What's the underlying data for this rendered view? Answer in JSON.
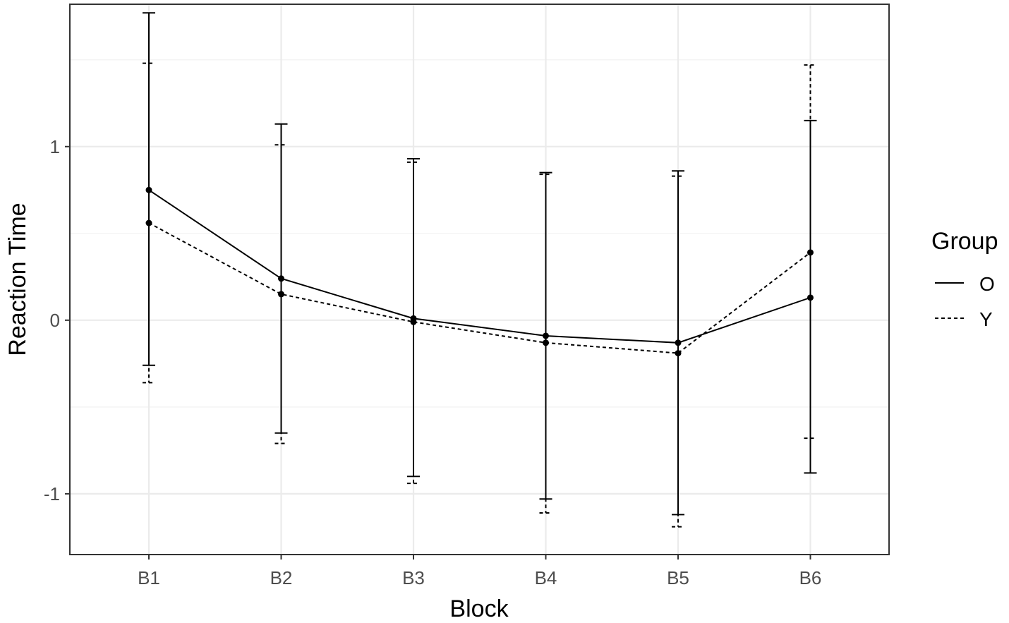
{
  "chart_data": {
    "type": "line",
    "xlabel": "Block",
    "ylabel": "Reaction Time",
    "categories": [
      "B1",
      "B2",
      "B3",
      "B4",
      "B5",
      "B6"
    ],
    "ylim": [
      -1.35,
      1.82
    ],
    "yticks": [
      -1,
      0,
      1
    ],
    "ytick_labels": [
      "-1",
      "0",
      "1"
    ],
    "grid": true,
    "legend": {
      "title": "Group",
      "position": "right"
    },
    "series": [
      {
        "name": "O",
        "line_style": "solid",
        "values": [
          0.75,
          0.24,
          0.01,
          -0.09,
          -0.13,
          0.13
        ],
        "error_upper": [
          1.77,
          1.13,
          0.93,
          0.85,
          0.86,
          1.15
        ],
        "error_lower": [
          -0.26,
          -0.65,
          -0.9,
          -1.03,
          -1.12,
          -0.88
        ]
      },
      {
        "name": "Y",
        "line_style": "dashed",
        "values": [
          0.56,
          0.15,
          -0.01,
          -0.13,
          -0.19,
          0.39
        ],
        "error_upper": [
          1.48,
          1.01,
          0.91,
          0.84,
          0.83,
          1.47
        ],
        "error_lower": [
          -0.36,
          -0.71,
          -0.94,
          -1.11,
          -1.19,
          -0.68
        ]
      }
    ],
    "colors": {
      "line": "#000000",
      "grid": "#ebebeb",
      "panel_border": "#333333"
    }
  }
}
